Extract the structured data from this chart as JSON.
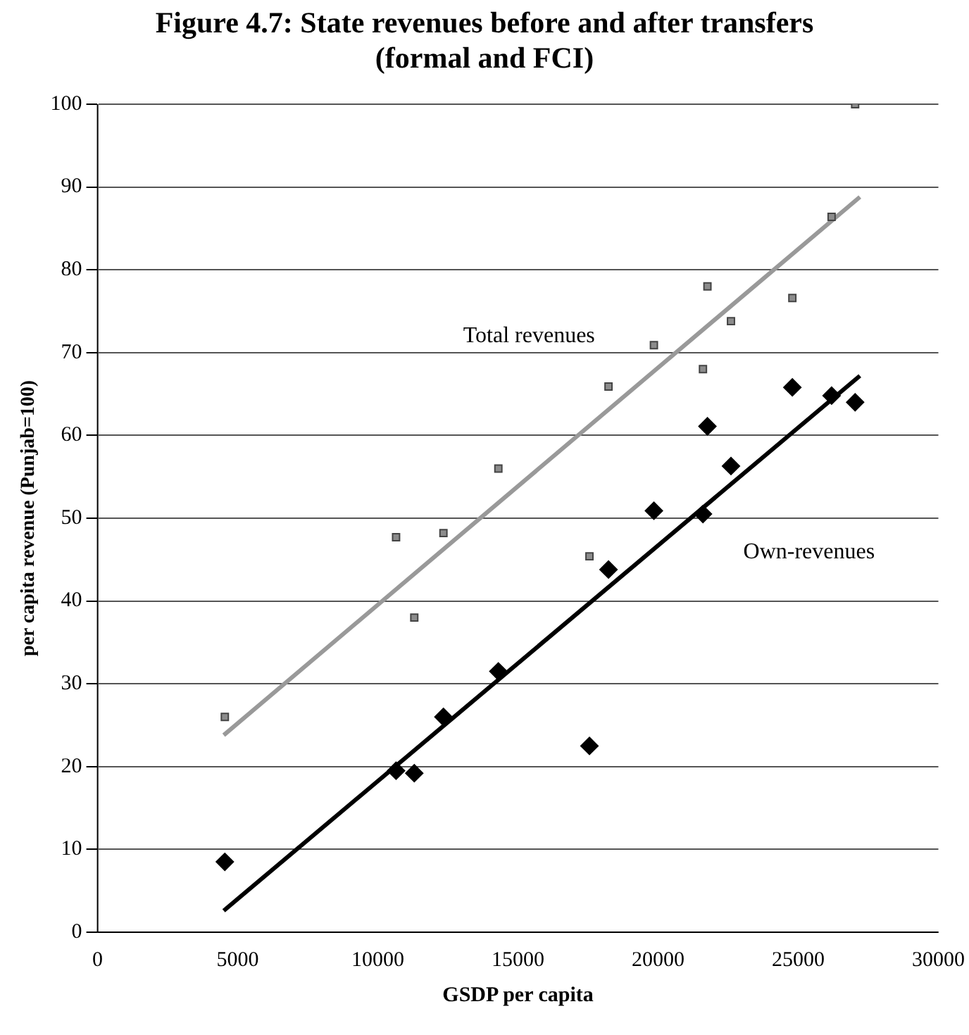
{
  "chart_data": {
    "type": "scatter",
    "title": "Figure 4.7: State revenues before and after transfers\n(formal and FCI)",
    "xlabel": "GSDP per capita",
    "ylabel": "per capita revenue (Punjab=100)",
    "xlim": [
      0,
      30000
    ],
    "xticks": [
      0,
      5000,
      10000,
      15000,
      20000,
      25000,
      30000
    ],
    "ylim": [
      0,
      100
    ],
    "yticks": [
      0,
      10,
      20,
      30,
      40,
      50,
      60,
      70,
      80,
      90,
      100
    ],
    "grid": "y",
    "legend": false,
    "series": [
      {
        "marker": "square",
        "color": "#8c8c8c",
        "x": [
          4540,
          10650,
          11300,
          12340,
          14300,
          17550,
          18230,
          19850,
          21600,
          21760,
          22600,
          24790,
          26190,
          27030
        ],
        "values": [
          26,
          47.7,
          38,
          48.2,
          56,
          45.4,
          65.9,
          70.9,
          68,
          78,
          73.8,
          76.6,
          86.4,
          100
        ]
      },
      {
        "marker": "diamond",
        "color": "#000000",
        "x": [
          4540,
          10650,
          11300,
          12340,
          14300,
          17550,
          18230,
          19850,
          21600,
          21760,
          22600,
          24790,
          26190,
          27030
        ],
        "values": [
          8.5,
          19.5,
          19.2,
          26,
          31.5,
          22.5,
          43.8,
          50.9,
          50.5,
          61.1,
          56.3,
          65.8,
          64.8,
          64
        ]
      },
      {
        "type": "line",
        "name": "Total revenues",
        "marker": "none",
        "line_style": "solid",
        "color": "#999999",
        "x": [
          4500,
          27200
        ],
        "values": [
          23.8,
          88.8
        ]
      },
      {
        "type": "line",
        "name": "Own-revenues",
        "marker": "none",
        "line_style": "solid",
        "color": "#000000",
        "x": [
          4500,
          27200
        ],
        "values": [
          2.6,
          67.2
        ]
      }
    ]
  }
}
